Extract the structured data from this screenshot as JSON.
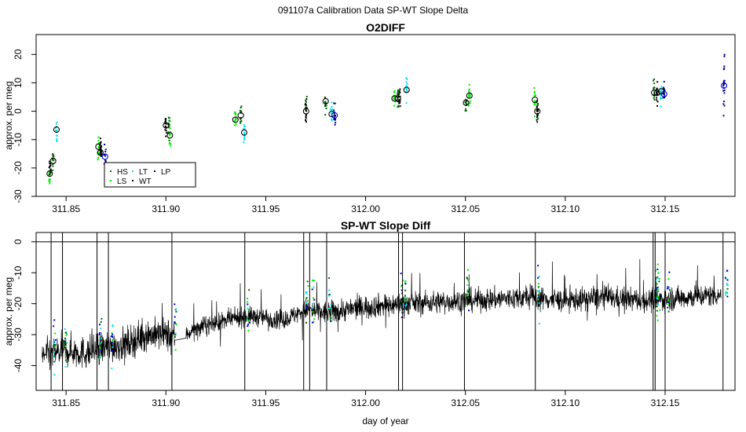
{
  "suptitle": "091107a   Calibration Data SP-WT Slope Delta",
  "chart_data": [
    {
      "type": "scatter",
      "title": "O2DIFF",
      "xlabel": "",
      "ylabel": "approx. per meg",
      "xlim": [
        311.835,
        312.185
      ],
      "ylim": [
        -30,
        27
      ],
      "xticks": [
        311.85,
        311.9,
        311.95,
        312.0,
        312.05,
        312.1,
        312.15
      ],
      "xtick_labels": [
        "311.85",
        "311.90",
        "311.95",
        "312.00",
        "312.05",
        "312.10",
        "312.15"
      ],
      "yticks": [
        -30,
        -20,
        -10,
        0,
        10,
        20
      ],
      "ytick_labels": [
        "-30",
        "-20",
        "-10",
        "0",
        "10",
        "20"
      ],
      "legend": {
        "placement": "bottom-left",
        "entries": [
          {
            "name": "HS",
            "color": "#006400"
          },
          {
            "name": "LS",
            "color": "#00ee00"
          },
          {
            "name": "LT",
            "color": "#00e5ee"
          },
          {
            "name": "WT",
            "color": "#000000"
          },
          {
            "name": "LP",
            "color": "#00008b"
          }
        ]
      },
      "series": [
        {
          "name": "HS",
          "color": "#006400",
          "x": [
            311.8435,
            311.8672,
            311.9015,
            311.9375,
            311.9702,
            311.98,
            312.0162,
            312.0503,
            312.086,
            312.1445
          ],
          "y": [
            -17.5,
            -14.5,
            -5.0,
            -1.5,
            0.5,
            3.5,
            4.5,
            2.5,
            -0.5,
            6.5
          ]
        },
        {
          "name": "LS",
          "color": "#00ee00",
          "x": [
            311.8418,
            311.8662,
            311.902,
            311.9348,
            312.0145,
            312.052,
            312.0848
          ],
          "y": [
            -22.0,
            -12.5,
            -8.5,
            -3.0,
            4.5,
            5.5,
            4.0
          ]
        },
        {
          "name": "LT",
          "color": "#00e5ee",
          "x": [
            311.8452,
            311.9392,
            311.983,
            312.0205,
            312.148
          ],
          "y": [
            -6.5,
            -7.5,
            -1.0,
            7.5,
            7.0
          ]
        },
        {
          "name": "WT",
          "color": "#000000",
          "x": [
            311.842,
            311.8675,
            311.9,
            311.9702,
            312.017,
            312.086,
            312.146
          ],
          "y": [
            -20.0,
            -13.0,
            -6.0,
            0.0,
            4.5,
            0.0,
            6.5
          ]
        },
        {
          "name": "LP",
          "color": "#00008b",
          "x": [
            311.8695,
            311.9845,
            312.1495,
            312.1795
          ],
          "y": [
            -16.5,
            -1.5,
            6.0,
            9.0
          ]
        }
      ],
      "group_means": {
        "x": [
          311.8418,
          311.8435,
          311.8452,
          311.8662,
          311.8672,
          311.8695,
          311.9,
          311.902,
          311.9348,
          311.9375,
          311.9392,
          311.9702,
          311.98,
          311.983,
          311.9845,
          312.0145,
          312.0162,
          312.0205,
          312.0503,
          312.052,
          312.0848,
          312.086,
          312.1445,
          312.146,
          312.148,
          312.1495,
          312.1795
        ],
        "y": [
          -22.0,
          -17.5,
          -6.5,
          -12.5,
          -14.5,
          -16.0,
          -5.0,
          -8.5,
          -3.0,
          -1.5,
          -7.5,
          0.0,
          3.5,
          -1.0,
          -1.5,
          4.5,
          4.5,
          7.5,
          3.0,
          5.5,
          4.0,
          0.0,
          6.5,
          6.5,
          7.0,
          6.0,
          9.0
        ]
      }
    },
    {
      "type": "line",
      "title": "SP-WT Slope Diff",
      "xlabel": "day of year",
      "ylabel": "approx. per meg",
      "xlim": [
        311.835,
        312.185
      ],
      "ylim": [
        -48,
        3
      ],
      "xticks": [
        311.85,
        311.9,
        311.95,
        312.0,
        312.05,
        312.1,
        312.15
      ],
      "xtick_labels": [
        "311.85",
        "311.90",
        "311.95",
        "312.00",
        "312.05",
        "312.10",
        "312.15"
      ],
      "yticks": [
        -40,
        -30,
        -20,
        -10,
        0
      ],
      "ytick_labels": [
        "-40",
        "-30",
        "-20",
        "-10",
        "0"
      ],
      "reference_line_y": 0,
      "series": [
        {
          "name": "",
          "color": "#000000",
          "x": [
            311.838,
            311.85,
            311.86,
            311.87,
            311.88,
            311.89,
            311.9,
            311.905,
            311.92,
            311.94,
            311.96,
            311.97,
            311.98,
            312.0,
            312.02,
            312.05,
            312.08,
            312.1,
            312.12,
            312.14,
            312.16,
            312.178
          ],
          "y": [
            -37,
            -35,
            -36,
            -34,
            -33,
            -30,
            -30,
            -31,
            -27,
            -24,
            -25,
            -22,
            -23,
            -21,
            -20,
            -19,
            -18,
            -19,
            -18,
            -19,
            -18,
            -17
          ]
        }
      ],
      "spikes_x": [
        311.8425,
        311.8482,
        311.8655,
        311.8712,
        311.903,
        311.9395,
        311.969,
        311.972,
        311.9805,
        312.0165,
        312.0185,
        312.0495,
        312.085,
        312.144,
        312.145,
        312.15,
        312.179
      ]
    }
  ]
}
